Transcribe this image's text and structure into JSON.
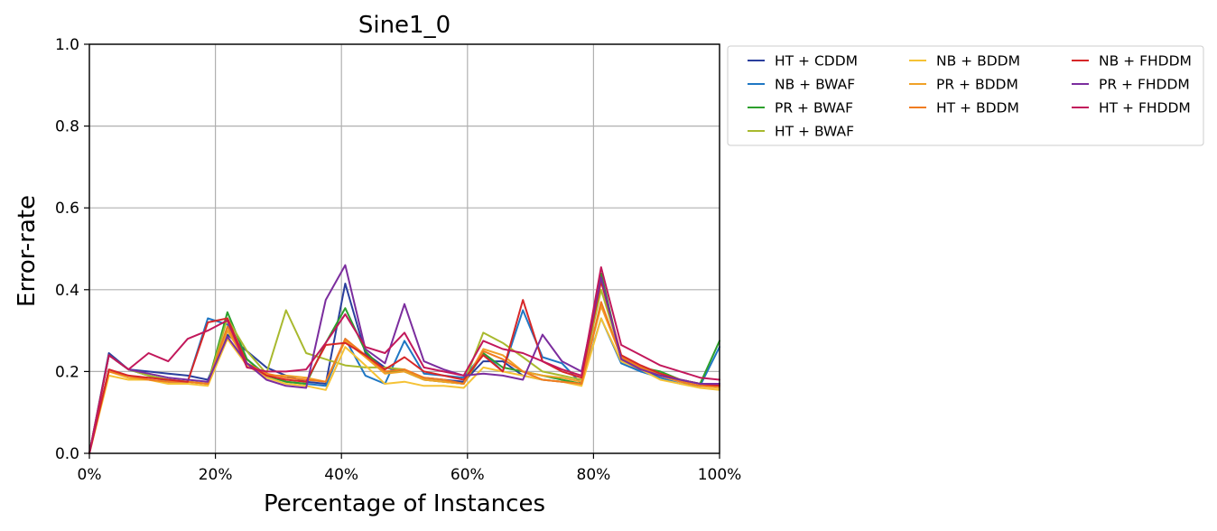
{
  "chart_data": {
    "type": "line",
    "title": "Sine1_0",
    "xlabel": "Percentage of Instances",
    "ylabel": "Error-rate",
    "xlim": [
      0,
      100
    ],
    "ylim": [
      0,
      1
    ],
    "x_tick_labels": [
      "0%",
      "20%",
      "40%",
      "60%",
      "80%",
      "100%"
    ],
    "x_tick_values": [
      0,
      20,
      40,
      60,
      80,
      100
    ],
    "y_tick_labels": [
      "0.0",
      "0.2",
      "0.4",
      "0.6",
      "0.8",
      "1.0"
    ],
    "y_tick_values": [
      0,
      0.2,
      0.4,
      0.6,
      0.8,
      1.0
    ],
    "grid": true,
    "legend_position": "outside-right-top",
    "x": [
      0,
      3.1,
      6.2,
      9.4,
      12.5,
      15.6,
      18.8,
      21.9,
      25,
      28.1,
      31.2,
      34.4,
      37.5,
      40.6,
      43.8,
      46.9,
      50,
      53.1,
      56.2,
      59.4,
      62.5,
      65.6,
      68.8,
      71.9,
      75,
      78.1,
      81.2,
      84.4,
      87.5,
      90.6,
      93.8,
      96.9,
      100
    ],
    "series": [
      {
        "name": "HT + CDDM",
        "color": "#2a3f9d",
        "values": [
          0,
          0.245,
          0.205,
          0.2,
          0.195,
          0.19,
          0.18,
          0.29,
          0.25,
          0.21,
          0.19,
          0.175,
          0.17,
          0.415,
          0.245,
          0.21,
          0.2,
          0.185,
          0.18,
          0.175,
          0.225,
          0.225,
          0.19,
          0.18,
          0.175,
          0.17,
          0.43,
          0.23,
          0.2,
          0.19,
          0.18,
          0.17,
          0.17
        ]
      },
      {
        "name": "NB + BWAF",
        "color": "#1f77c4",
        "values": [
          0,
          0.24,
          0.205,
          0.19,
          0.175,
          0.175,
          0.33,
          0.315,
          0.23,
          0.19,
          0.175,
          0.17,
          0.165,
          0.28,
          0.19,
          0.17,
          0.275,
          0.195,
          0.19,
          0.185,
          0.245,
          0.2,
          0.35,
          0.235,
          0.22,
          0.17,
          0.33,
          0.22,
          0.2,
          0.185,
          0.17,
          0.165,
          0.26
        ]
      },
      {
        "name": "PR + BWAF",
        "color": "#2ca02c",
        "values": [
          0,
          0.24,
          0.205,
          0.19,
          0.18,
          0.175,
          0.17,
          0.345,
          0.23,
          0.19,
          0.175,
          0.17,
          0.27,
          0.355,
          0.25,
          0.2,
          0.2,
          0.18,
          0.175,
          0.17,
          0.245,
          0.21,
          0.2,
          0.19,
          0.18,
          0.17,
          0.44,
          0.23,
          0.21,
          0.2,
          0.18,
          0.17,
          0.275
        ]
      },
      {
        "name": "HT + BWAF",
        "color": "#a8b92e",
        "values": [
          0,
          0.24,
          0.205,
          0.19,
          0.18,
          0.175,
          0.17,
          0.33,
          0.25,
          0.195,
          0.35,
          0.245,
          0.23,
          0.215,
          0.21,
          0.21,
          0.205,
          0.18,
          0.175,
          0.17,
          0.295,
          0.27,
          0.235,
          0.2,
          0.19,
          0.18,
          0.4,
          0.24,
          0.21,
          0.195,
          0.18,
          0.17,
          0.165
        ]
      },
      {
        "name": "NB + BDDM",
        "color": "#f5c235",
        "values": [
          0,
          0.19,
          0.18,
          0.18,
          0.17,
          0.17,
          0.165,
          0.28,
          0.215,
          0.185,
          0.17,
          0.165,
          0.155,
          0.26,
          0.215,
          0.17,
          0.175,
          0.165,
          0.165,
          0.16,
          0.21,
          0.2,
          0.19,
          0.18,
          0.175,
          0.165,
          0.33,
          0.225,
          0.205,
          0.18,
          0.17,
          0.16,
          0.155
        ]
      },
      {
        "name": "PR + BDDM",
        "color": "#f0a127",
        "values": [
          0,
          0.2,
          0.185,
          0.18,
          0.175,
          0.175,
          0.17,
          0.3,
          0.22,
          0.19,
          0.19,
          0.185,
          0.175,
          0.275,
          0.235,
          0.195,
          0.2,
          0.18,
          0.175,
          0.17,
          0.255,
          0.24,
          0.2,
          0.19,
          0.185,
          0.175,
          0.36,
          0.235,
          0.21,
          0.19,
          0.175,
          0.165,
          0.16
        ]
      },
      {
        "name": "HT + BDDM",
        "color": "#f07c20",
        "values": [
          0,
          0.2,
          0.19,
          0.18,
          0.175,
          0.175,
          0.17,
          0.31,
          0.22,
          0.195,
          0.185,
          0.18,
          0.175,
          0.28,
          0.24,
          0.2,
          0.205,
          0.185,
          0.18,
          0.17,
          0.25,
          0.23,
          0.2,
          0.18,
          0.175,
          0.17,
          0.37,
          0.235,
          0.21,
          0.19,
          0.175,
          0.165,
          0.165
        ]
      },
      {
        "name": "NB + FHDDM",
        "color": "#d62728",
        "values": [
          0,
          0.205,
          0.19,
          0.185,
          0.18,
          0.175,
          0.32,
          0.33,
          0.22,
          0.19,
          0.18,
          0.175,
          0.265,
          0.27,
          0.24,
          0.205,
          0.235,
          0.2,
          0.19,
          0.18,
          0.24,
          0.2,
          0.375,
          0.225,
          0.2,
          0.185,
          0.42,
          0.24,
          0.215,
          0.195,
          0.18,
          0.17,
          0.165
        ]
      },
      {
        "name": "PR + FHDDM",
        "color": "#7b2d9e",
        "values": [
          0,
          0.24,
          0.205,
          0.195,
          0.185,
          0.18,
          0.175,
          0.285,
          0.22,
          0.18,
          0.165,
          0.16,
          0.375,
          0.46,
          0.255,
          0.22,
          0.365,
          0.225,
          0.205,
          0.19,
          0.195,
          0.19,
          0.18,
          0.29,
          0.225,
          0.2,
          0.43,
          0.23,
          0.205,
          0.19,
          0.18,
          0.17,
          0.17
        ]
      },
      {
        "name": "HT + FHDDM",
        "color": "#c2185b",
        "values": [
          0,
          0.24,
          0.205,
          0.245,
          0.225,
          0.28,
          0.3,
          0.325,
          0.21,
          0.2,
          0.2,
          0.205,
          0.27,
          0.34,
          0.26,
          0.245,
          0.295,
          0.21,
          0.2,
          0.19,
          0.275,
          0.255,
          0.245,
          0.225,
          0.205,
          0.19,
          0.455,
          0.265,
          0.24,
          0.215,
          0.2,
          0.185,
          0.18
        ]
      }
    ]
  }
}
